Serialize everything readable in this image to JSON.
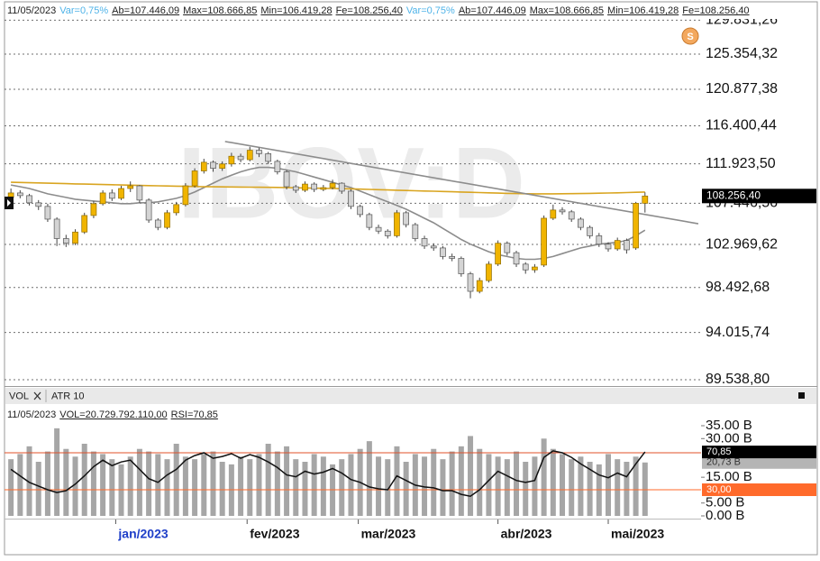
{
  "header": {
    "items": [
      "11/05/2023",
      "Var=0,75%",
      "Ab=107.446,09",
      "Max=108.666,85",
      "Min=106.419,28",
      "Fe=108.256,40",
      "Var=0,75%",
      "Ab=107.446,09",
      "Max=108.666,85",
      "Min=106.419,28",
      "Fe=108.256,40"
    ],
    "highlight": [
      1,
      6
    ],
    "highlight_color": "#4fb3e8"
  },
  "tabs": [
    "VOL",
    "ATR 10"
  ],
  "chart_data": [
    {
      "type": "candlestick",
      "watermark": "IBOV:D",
      "icon": "S",
      "log_scale": true,
      "grid": true,
      "xlim": [
        -0.7,
        75.1
      ],
      "ylim": [
        88958,
        131330
      ],
      "yticks": [
        {
          "value": 89538.8,
          "label": "89.538,80"
        },
        {
          "value": 94015.74,
          "label": "94.015,74"
        },
        {
          "value": 98492.68,
          "label": "98.492,68"
        },
        {
          "value": 102969.62,
          "label": "102.969,62"
        },
        {
          "value": 107446.56,
          "label": "107.446,56"
        },
        {
          "value": 111923.5,
          "label": "111.923,50"
        },
        {
          "value": 116400.44,
          "label": "116.400,44"
        },
        {
          "value": 120877.38,
          "label": "120.877,38"
        },
        {
          "value": 125354.32,
          "label": "125.354,32"
        },
        {
          "value": 129831.26,
          "label": "129.831,26"
        }
      ],
      "up_color": "#f0b400",
      "down_color": "#d4d4d4",
      "candles": [
        [
          108100,
          109100,
          107800,
          108600
        ],
        [
          108600,
          108900,
          108000,
          108300
        ],
        [
          108300,
          108500,
          107200,
          107500
        ],
        [
          107500,
          107800,
          106700,
          107100
        ],
        [
          107100,
          107400,
          105400,
          105700
        ],
        [
          105700,
          105900,
          102800,
          103600
        ],
        [
          103600,
          104000,
          102700,
          103100
        ],
        [
          103100,
          104600,
          102900,
          104300
        ],
        [
          104300,
          106400,
          104100,
          106100
        ],
        [
          106100,
          107700,
          105800,
          107400
        ],
        [
          107400,
          108900,
          107200,
          108600
        ],
        [
          108600,
          109000,
          107700,
          108000
        ],
        [
          108000,
          109400,
          107800,
          109100
        ],
        [
          109100,
          109900,
          108700,
          109400
        ],
        [
          109400,
          109500,
          107500,
          107800
        ],
        [
          107800,
          108000,
          105300,
          105600
        ],
        [
          105600,
          105800,
          104500,
          104800
        ],
        [
          104800,
          106700,
          104600,
          106400
        ],
        [
          106400,
          107600,
          106100,
          107300
        ],
        [
          107300,
          109700,
          107100,
          109400
        ],
        [
          109400,
          111400,
          109200,
          111100
        ],
        [
          111100,
          112500,
          110800,
          112100
        ],
        [
          112100,
          112300,
          111000,
          111400
        ],
        [
          111400,
          112200,
          111100,
          111900
        ],
        [
          111900,
          113200,
          111600,
          112800
        ],
        [
          112800,
          113100,
          112100,
          112400
        ],
        [
          112400,
          113900,
          112200,
          113500
        ],
        [
          113500,
          113800,
          112700,
          113100
        ],
        [
          113100,
          113300,
          111900,
          112200
        ],
        [
          112200,
          112400,
          110700,
          111000
        ],
        [
          111000,
          111200,
          109000,
          109300
        ],
        [
          109300,
          109500,
          108600,
          108900
        ],
        [
          108900,
          109900,
          108700,
          109600
        ],
        [
          109600,
          109800,
          108700,
          109000
        ],
        [
          109000,
          109500,
          108800,
          109200
        ],
        [
          109200,
          110100,
          109000,
          109700
        ],
        [
          109700,
          109800,
          108500,
          108800
        ],
        [
          108800,
          109000,
          106800,
          107100
        ],
        [
          107100,
          107300,
          105900,
          106200
        ],
        [
          106200,
          106400,
          104500,
          104800
        ],
        [
          104800,
          105100,
          104100,
          104400
        ],
        [
          104400,
          104600,
          103600,
          103900
        ],
        [
          103900,
          106700,
          103700,
          106400
        ],
        [
          106400,
          106600,
          104800,
          105100
        ],
        [
          105100,
          105300,
          103300,
          103600
        ],
        [
          103600,
          103900,
          102500,
          102800
        ],
        [
          102800,
          103100,
          102300,
          102600
        ],
        [
          102600,
          102800,
          101400,
          101700
        ],
        [
          101700,
          102000,
          101200,
          101500
        ],
        [
          101500,
          101700,
          99600,
          99900
        ],
        [
          99900,
          100100,
          97400,
          98100
        ],
        [
          98100,
          99500,
          97900,
          99200
        ],
        [
          99200,
          101200,
          99000,
          100900
        ],
        [
          100900,
          103400,
          100700,
          103100
        ],
        [
          103100,
          103300,
          101800,
          102100
        ],
        [
          102100,
          102300,
          100600,
          100900
        ],
        [
          100900,
          101100,
          99900,
          100300
        ],
        [
          100300,
          100900,
          100000,
          100600
        ],
        [
          100800,
          106100,
          100600,
          105800
        ],
        [
          105800,
          107300,
          105600,
          106700
        ],
        [
          106700,
          107000,
          106200,
          106500
        ],
        [
          106500,
          106700,
          105400,
          105700
        ],
        [
          105700,
          105900,
          104500,
          104800
        ],
        [
          104800,
          105000,
          103600,
          103900
        ],
        [
          103900,
          104200,
          102700,
          103000
        ],
        [
          103000,
          103200,
          102200,
          102500
        ],
        [
          102500,
          103700,
          102300,
          103400
        ],
        [
          103400,
          103600,
          102000,
          102400
        ],
        [
          102600,
          107600,
          102400,
          107450
        ],
        [
          107446.09,
          108666.85,
          106419.28,
          108256.4
        ]
      ],
      "lines": [
        {
          "color": "#8c8c8c",
          "values": [
            109500,
            109300,
            109100,
            108800,
            108500,
            108300,
            108100,
            107900,
            107800,
            107700,
            107600,
            107500,
            107400,
            107400,
            107500,
            107500,
            107600,
            107800,
            108000,
            108300,
            108700,
            109200,
            109700,
            110200,
            110600,
            111000,
            111300,
            111500,
            111500,
            111400,
            111200,
            111000,
            110700,
            110400,
            110100,
            109800,
            109500,
            109200,
            108800,
            108400,
            108000,
            107600,
            107200,
            106800,
            106300,
            105800,
            105300,
            104700,
            104100,
            103500,
            103000,
            102600,
            102200,
            101900,
            101700,
            101500,
            101400,
            101400,
            101500,
            101700,
            102000,
            102300,
            102600,
            102800,
            103000,
            103100,
            103200,
            103400,
            103900,
            104500
          ]
        },
        {
          "color": "#d9a521",
          "values": [
            109800,
            109780,
            109750,
            109730,
            109700,
            109680,
            109650,
            109620,
            109600,
            109580,
            109550,
            109530,
            109500,
            109480,
            109450,
            109430,
            109400,
            109380,
            109360,
            109340,
            109320,
            109300,
            109290,
            109280,
            109270,
            109260,
            109250,
            109240,
            109230,
            109220,
            109200,
            109180,
            109160,
            109140,
            109120,
            109100,
            109080,
            109060,
            109030,
            109000,
            108970,
            108940,
            108910,
            108880,
            108850,
            108820,
            108790,
            108760,
            108730,
            108700,
            108670,
            108640,
            108610,
            108580,
            108550,
            108530,
            108510,
            108500,
            108500,
            108500,
            108510,
            108520,
            108530,
            108550,
            108570,
            108590,
            108610,
            108640,
            108670,
            108700
          ]
        }
      ],
      "trendline": {
        "color": "#8c8c8c",
        "x": [
          23.3,
          74.8
        ],
        "values": [
          114530,
          105200
        ]
      },
      "last_label": "108.256,40"
    },
    {
      "type": "volume_rsi",
      "header": [
        "11/05/2023",
        "VOL=20.729.792.110,00",
        "RSI=70,85"
      ],
      "xlim": [
        -0.7,
        75.1
      ],
      "xticks": [
        {
          "value": 11.4,
          "label": "jan/2023"
        },
        {
          "value": 25.7,
          "label": "fev/2023"
        },
        {
          "value": 37.8,
          "label": "mar/2023"
        },
        {
          "value": 53,
          "label": "abr/2023"
        },
        {
          "value": 65,
          "label": "mai/2023"
        }
      ],
      "xtick_highlight": 0,
      "xtick_highlight_color": "#1f3fc8",
      "color": "#a6a6a6",
      "ylim": [
        0,
        35
      ],
      "yticks": [
        {
          "value": 35,
          "label": "35.00 B"
        },
        {
          "value": 30,
          "label": "30.00 B"
        },
        {
          "value": 15,
          "label": "15.00 B"
        },
        {
          "value": 5,
          "label": "5.00 B"
        },
        {
          "value": 0,
          "label": "0.00 B"
        }
      ],
      "values": [
        22,
        24,
        27,
        21,
        25,
        34,
        26,
        23,
        28,
        25,
        24,
        22,
        20,
        23,
        26,
        25,
        24,
        22,
        28,
        23,
        22,
        24,
        25,
        21,
        20,
        23,
        22,
        24,
        28,
        25,
        27,
        22,
        21,
        24,
        23,
        20,
        22,
        24,
        26,
        29,
        23,
        22,
        27,
        21,
        24,
        23,
        26,
        22,
        25,
        27,
        31,
        26,
        24,
        23,
        22,
        25,
        21,
        23,
        30,
        26,
        24,
        22,
        23,
        21,
        20,
        24,
        22,
        21,
        23,
        20.73
      ],
      "last_label": "20,73 B",
      "rsi": {
        "color": "#111111",
        "ylim": [
          1.7,
          101.2
        ],
        "values": [
          52,
          45,
          38,
          34,
          30,
          27,
          29,
          36,
          45,
          55,
          62,
          56,
          60,
          62,
          52,
          42,
          38,
          46,
          52,
          62,
          67,
          70,
          64,
          66,
          69,
          64,
          68,
          65,
          60,
          54,
          46,
          44,
          50,
          47,
          49,
          53,
          48,
          41,
          38,
          33,
          31,
          30,
          45,
          40,
          35,
          33,
          32,
          29,
          29,
          25,
          23,
          30,
          40,
          50,
          45,
          40,
          38,
          40,
          65,
          72,
          70,
          65,
          58,
          52,
          46,
          43,
          48,
          44,
          58,
          70.85
        ],
        "levels": [
          {
            "value": 70,
            "color": "#e0502a"
          },
          {
            "value": 30,
            "color": "#ff6a2b",
            "label": "30,00"
          }
        ],
        "last_label": "70,85"
      }
    }
  ]
}
